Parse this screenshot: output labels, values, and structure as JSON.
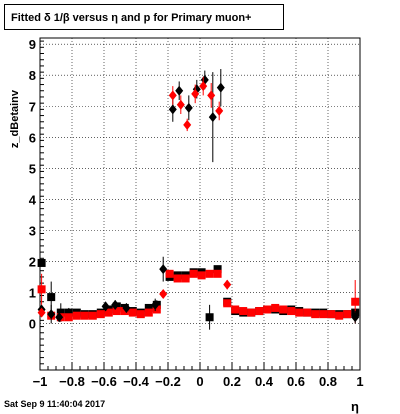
{
  "title": "Fitted δ 1/β versus η and p for Primary muon+",
  "footer": "Sat Sep  9 11:40:04 2017",
  "chart_data": {
    "type": "scatter",
    "title": "Fitted δ 1/β versus η and p for Primary muon+",
    "xlabel": "η",
    "ylabel": "z_dBetainv",
    "xlim": [
      -1,
      1
    ],
    "ylim": [
      -1.5,
      9.2
    ],
    "x_ticks": [
      "−1",
      "−0.8",
      "−0.6",
      "−0.4",
      "−0.2",
      "0",
      "0.2",
      "0.4",
      "0.6",
      "0.8",
      "1"
    ],
    "y_ticks": [
      "0",
      "1",
      "2",
      "3",
      "4",
      "5",
      "6",
      "7",
      "8",
      "9"
    ],
    "grid": true,
    "series": [
      {
        "marker": "square",
        "color": "#000000",
        "points": [
          {
            "x": -0.99,
            "y": 1.95,
            "e": 0.0
          },
          {
            "x": -0.93,
            "y": 0.85,
            "e": 0.5
          },
          {
            "x": -0.87,
            "y": 0.35,
            "e": 0.3
          },
          {
            "x": -0.82,
            "y": 0.35,
            "e": 0.15
          },
          {
            "x": -0.77,
            "y": 0.35,
            "e": 0.1
          },
          {
            "x": -0.72,
            "y": 0.3,
            "e": 0.1
          },
          {
            "x": -0.67,
            "y": 0.3,
            "e": 0.1
          },
          {
            "x": -0.62,
            "y": 0.35,
            "e": 0.1
          },
          {
            "x": -0.57,
            "y": 0.45,
            "e": 0.1
          },
          {
            "x": -0.52,
            "y": 0.55,
            "e": 0.1
          },
          {
            "x": -0.47,
            "y": 0.5,
            "e": 0.1
          },
          {
            "x": -0.42,
            "y": 0.4,
            "e": 0.1
          },
          {
            "x": -0.37,
            "y": 0.35,
            "e": 0.1
          },
          {
            "x": -0.32,
            "y": 0.5,
            "e": 0.1
          },
          {
            "x": -0.27,
            "y": 0.6,
            "e": 0.15
          },
          {
            "x": -0.19,
            "y": 1.5,
            "e": 0.1
          },
          {
            "x": -0.14,
            "y": 1.55,
            "e": 0.1
          },
          {
            "x": -0.09,
            "y": 1.55,
            "e": 0.1
          },
          {
            "x": -0.04,
            "y": 1.65,
            "e": 0.1
          },
          {
            "x": 0.01,
            "y": 1.65,
            "e": 0.1
          },
          {
            "x": 0.06,
            "y": 0.2,
            "e": 0.4
          },
          {
            "x": 0.11,
            "y": 1.75,
            "e": 0.1
          },
          {
            "x": 0.17,
            "y": 0.7,
            "e": 0.1
          },
          {
            "x": 0.22,
            "y": 0.4,
            "e": 0.1
          },
          {
            "x": 0.27,
            "y": 0.35,
            "e": 0.1
          },
          {
            "x": 0.32,
            "y": 0.35,
            "e": 0.1
          },
          {
            "x": 0.37,
            "y": 0.4,
            "e": 0.1
          },
          {
            "x": 0.42,
            "y": 0.45,
            "e": 0.1
          },
          {
            "x": 0.47,
            "y": 0.45,
            "e": 0.1
          },
          {
            "x": 0.52,
            "y": 0.4,
            "e": 0.1
          },
          {
            "x": 0.57,
            "y": 0.45,
            "e": 0.1
          },
          {
            "x": 0.62,
            "y": 0.4,
            "e": 0.1
          },
          {
            "x": 0.67,
            "y": 0.35,
            "e": 0.1
          },
          {
            "x": 0.72,
            "y": 0.35,
            "e": 0.1
          },
          {
            "x": 0.77,
            "y": 0.35,
            "e": 0.1
          },
          {
            "x": 0.82,
            "y": 0.3,
            "e": 0.1
          },
          {
            "x": 0.87,
            "y": 0.3,
            "e": 0.1
          },
          {
            "x": 0.92,
            "y": 0.3,
            "e": 0.1
          },
          {
            "x": 0.97,
            "y": 0.35,
            "e": 0.1
          }
        ]
      },
      {
        "marker": "square",
        "color": "#ff0000",
        "points": [
          {
            "x": -0.99,
            "y": 1.1,
            "e": 0.5
          },
          {
            "x": -0.93,
            "y": 0.25,
            "e": 0.1
          },
          {
            "x": -0.87,
            "y": 0.2,
            "e": 0.1
          },
          {
            "x": -0.82,
            "y": 0.2,
            "e": 0.1
          },
          {
            "x": -0.77,
            "y": 0.25,
            "e": 0.1
          },
          {
            "x": -0.72,
            "y": 0.25,
            "e": 0.1
          },
          {
            "x": -0.67,
            "y": 0.25,
            "e": 0.1
          },
          {
            "x": -0.62,
            "y": 0.3,
            "e": 0.1
          },
          {
            "x": -0.57,
            "y": 0.35,
            "e": 0.1
          },
          {
            "x": -0.52,
            "y": 0.4,
            "e": 0.1
          },
          {
            "x": -0.47,
            "y": 0.4,
            "e": 0.1
          },
          {
            "x": -0.42,
            "y": 0.35,
            "e": 0.1
          },
          {
            "x": -0.37,
            "y": 0.3,
            "e": 0.1
          },
          {
            "x": -0.32,
            "y": 0.35,
            "e": 0.1
          },
          {
            "x": -0.27,
            "y": 0.45,
            "e": 0.1
          },
          {
            "x": -0.19,
            "y": 1.6,
            "e": 0.1
          },
          {
            "x": -0.14,
            "y": 1.45,
            "e": 0.1
          },
          {
            "x": -0.09,
            "y": 1.45,
            "e": 0.1
          },
          {
            "x": -0.04,
            "y": 1.6,
            "e": 0.1
          },
          {
            "x": 0.01,
            "y": 1.55,
            "e": 0.1
          },
          {
            "x": 0.06,
            "y": 1.6,
            "e": 0.1
          },
          {
            "x": 0.11,
            "y": 1.6,
            "e": 0.1
          },
          {
            "x": 0.17,
            "y": 0.65,
            "e": 0.1
          },
          {
            "x": 0.22,
            "y": 0.45,
            "e": 0.1
          },
          {
            "x": 0.27,
            "y": 0.4,
            "e": 0.1
          },
          {
            "x": 0.32,
            "y": 0.35,
            "e": 0.1
          },
          {
            "x": 0.37,
            "y": 0.4,
            "e": 0.1
          },
          {
            "x": 0.42,
            "y": 0.45,
            "e": 0.1
          },
          {
            "x": 0.47,
            "y": 0.5,
            "e": 0.1
          },
          {
            "x": 0.52,
            "y": 0.45,
            "e": 0.1
          },
          {
            "x": 0.57,
            "y": 0.4,
            "e": 0.1
          },
          {
            "x": 0.62,
            "y": 0.35,
            "e": 0.1
          },
          {
            "x": 0.67,
            "y": 0.35,
            "e": 0.1
          },
          {
            "x": 0.72,
            "y": 0.3,
            "e": 0.1
          },
          {
            "x": 0.77,
            "y": 0.3,
            "e": 0.1
          },
          {
            "x": 0.82,
            "y": 0.3,
            "e": 0.1
          },
          {
            "x": 0.87,
            "y": 0.25,
            "e": 0.1
          },
          {
            "x": 0.92,
            "y": 0.3,
            "e": 0.1
          },
          {
            "x": 0.97,
            "y": 0.7,
            "e": 0.7
          }
        ]
      },
      {
        "marker": "diamond",
        "color": "#000000",
        "points": [
          {
            "x": -0.99,
            "y": 0.45,
            "e": 0.1
          },
          {
            "x": -0.93,
            "y": 0.3,
            "e": 0.3
          },
          {
            "x": -0.88,
            "y": 0.2,
            "e": 0.15
          },
          {
            "x": -0.59,
            "y": 0.55,
            "e": 0.15
          },
          {
            "x": -0.53,
            "y": 0.6,
            "e": 0.15
          },
          {
            "x": -0.46,
            "y": 0.5,
            "e": 0.15
          },
          {
            "x": -0.28,
            "y": 0.6,
            "e": 0.2
          },
          {
            "x": -0.23,
            "y": 1.75,
            "e": 0.4
          },
          {
            "x": -0.17,
            "y": 6.9,
            "e": 0.4
          },
          {
            "x": -0.13,
            "y": 7.5,
            "e": 0.3
          },
          {
            "x": -0.07,
            "y": 6.95,
            "e": 0.4
          },
          {
            "x": -0.02,
            "y": 7.55,
            "e": 0.3
          },
          {
            "x": 0.03,
            "y": 7.85,
            "e": 0.3
          },
          {
            "x": 0.08,
            "y": 6.65,
            "e": 1.45
          },
          {
            "x": 0.13,
            "y": 7.6,
            "e": 0.6
          },
          {
            "x": 0.97,
            "y": 0.2,
            "e": 0.2
          }
        ]
      },
      {
        "marker": "diamond",
        "color": "#ff0000",
        "points": [
          {
            "x": -0.99,
            "y": 0.35,
            "e": 0.1
          },
          {
            "x": -0.23,
            "y": 0.95,
            "e": 0.1
          },
          {
            "x": -0.17,
            "y": 7.35,
            "e": 0.3
          },
          {
            "x": -0.12,
            "y": 7.05,
            "e": 0.3
          },
          {
            "x": -0.08,
            "y": 6.4,
            "e": 0.2
          },
          {
            "x": -0.03,
            "y": 7.4,
            "e": 0.3
          },
          {
            "x": 0.02,
            "y": 7.65,
            "e": 0.3
          },
          {
            "x": 0.07,
            "y": 7.35,
            "e": 0.4
          },
          {
            "x": 0.12,
            "y": 6.85,
            "e": 0.3
          },
          {
            "x": 0.17,
            "y": 1.25,
            "e": 0.15
          }
        ]
      }
    ]
  }
}
